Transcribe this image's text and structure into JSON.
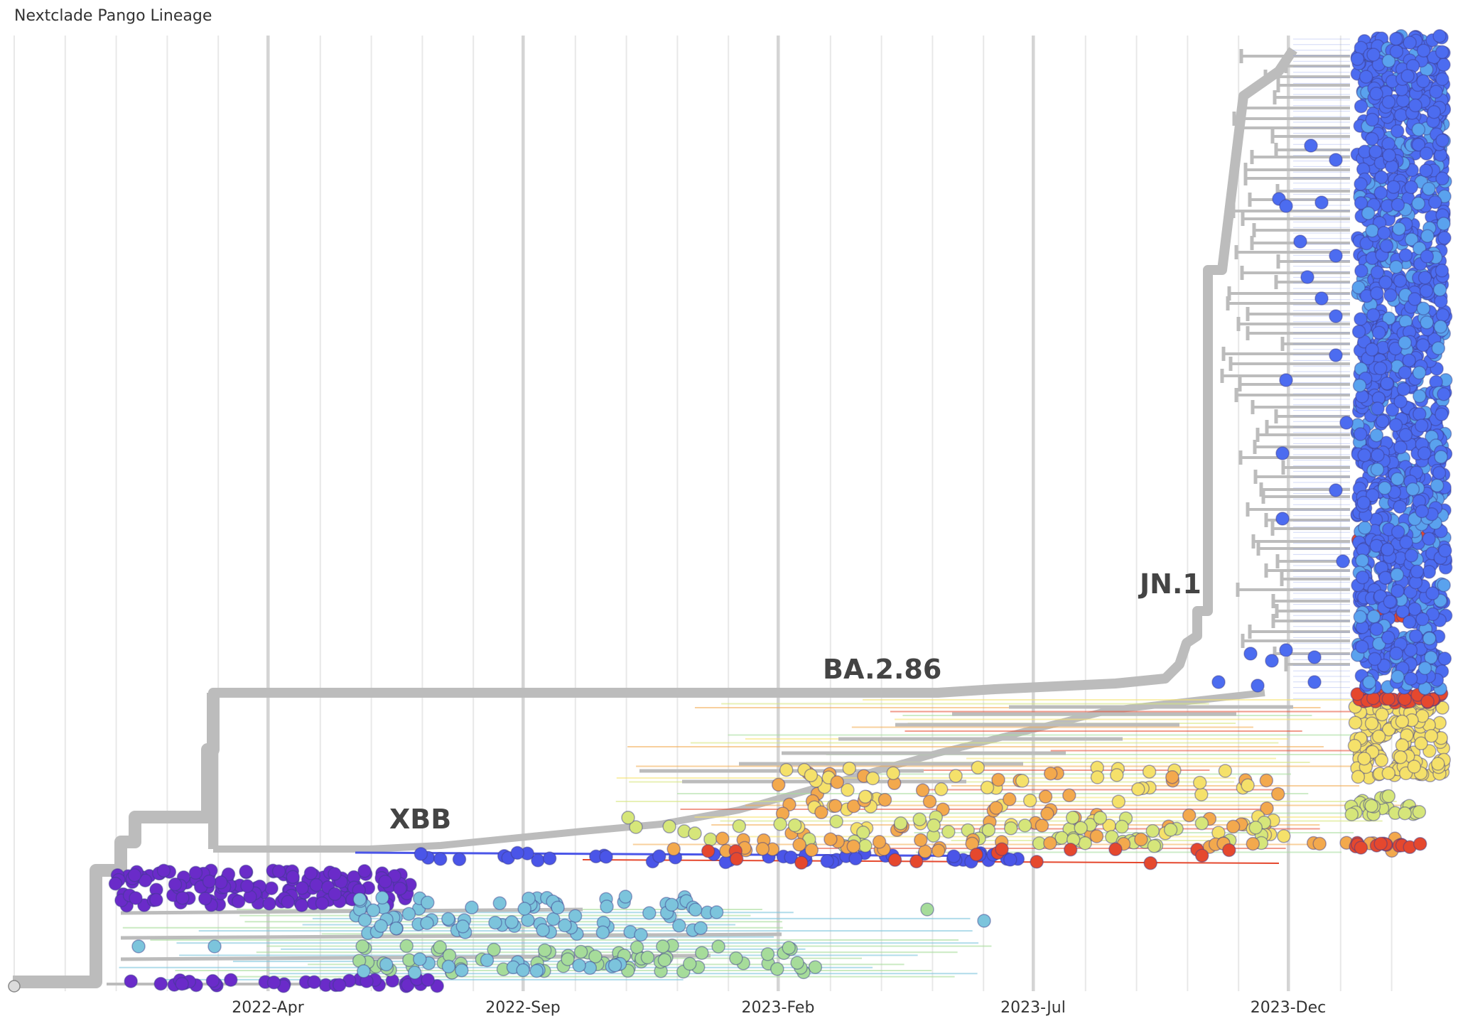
{
  "panel": {
    "title": "Nextclade Pango Lineage"
  },
  "chart_data": {
    "type": "scatter",
    "title": "Nextclade Pango Lineage",
    "xlabel": "",
    "ylabel": "",
    "x_axis": {
      "tick_labels": [
        "2022-Apr",
        "2022-Sep",
        "2023-Feb",
        "2023-Jul",
        "2023-Dec"
      ],
      "range": [
        "2021-09",
        "2024-05"
      ]
    },
    "grid": true,
    "legend": "none",
    "clade_labels": [
      {
        "label": "XBB",
        "date": "2022-Jul"
      },
      {
        "label": "BA.2.86",
        "date": "2023-Mar"
      },
      {
        "label": "JN.1",
        "date": "2023-Sep"
      }
    ],
    "colors": {
      "branch": "#bcbcbc",
      "early_purple": "#6a2bc9",
      "xbb_blue": "#4a55e8",
      "cyan": "#7cc4dc",
      "green": "#a6dc9a",
      "yellow_green": "#d6e67a",
      "yellow": "#f5e16a",
      "orange": "#f3a94d",
      "red": "#e5482e",
      "jn1_blue": "#4c6cf0",
      "jn1_light": "#5aa2ee"
    }
  }
}
